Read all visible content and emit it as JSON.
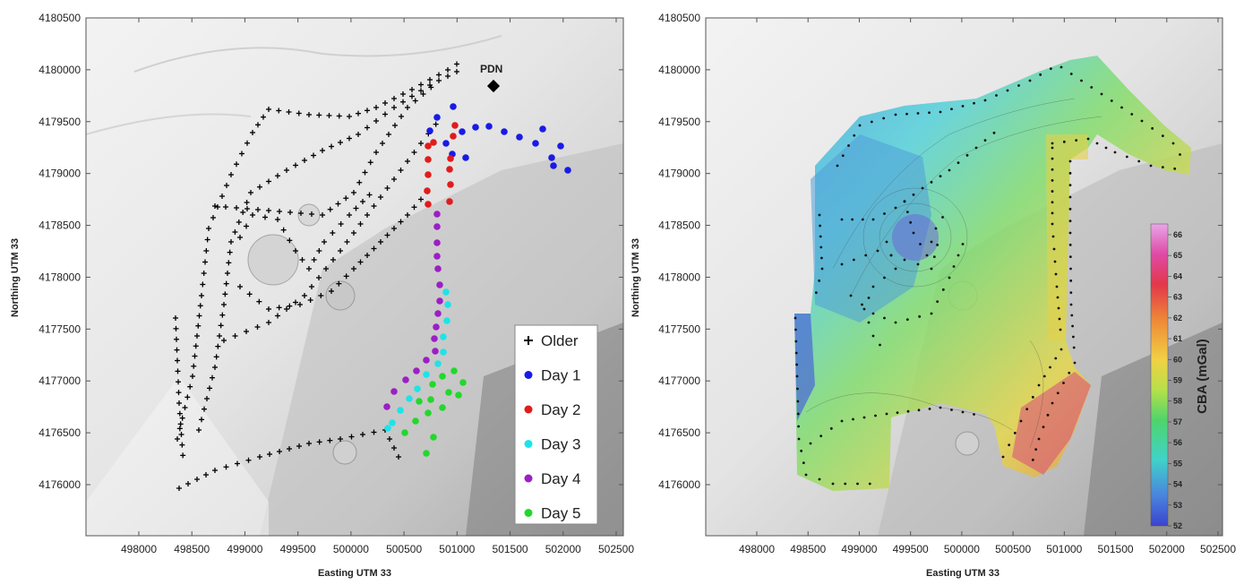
{
  "left_map": {
    "x_axis_label": "Easting UTM 33",
    "y_axis_label": "Northing UTM 33",
    "x_ticks": [
      "498000",
      "498500",
      "499000",
      "499500",
      "500000",
      "500500",
      "501000",
      "501500",
      "502000",
      "502500"
    ],
    "y_ticks": [
      "4180500",
      "4180000",
      "4179500",
      "4179000",
      "4178500",
      "4178000",
      "4177500",
      "4177000",
      "4176500",
      "4176000"
    ],
    "station_label": "PDN",
    "legend": [
      {
        "label": "Older",
        "symbol": "plus-marker",
        "color": "#000000"
      },
      {
        "label": "Day 1",
        "symbol": "dot-marker",
        "color": "#1a1ae6"
      },
      {
        "label": "Day 2",
        "symbol": "dot-marker",
        "color": "#e01c1c"
      },
      {
        "label": "Day 3",
        "symbol": "dot-marker",
        "color": "#1ee3e8"
      },
      {
        "label": "Day 4",
        "symbol": "dot-marker",
        "color": "#9b1fc4"
      },
      {
        "label": "Day 5",
        "symbol": "dot-marker",
        "color": "#22d82c"
      }
    ]
  },
  "right_map": {
    "x_axis_label": "Easting UTM 33",
    "y_axis_label": "Northing UTM 33",
    "x_ticks": [
      "498000",
      "498500",
      "499000",
      "499500",
      "500000",
      "500500",
      "501000",
      "501500",
      "502000",
      "502500"
    ],
    "y_ticks": [
      "4180500",
      "4180000",
      "4179500",
      "4179000",
      "4178500",
      "4178000",
      "4177500",
      "4177000",
      "4176500",
      "4176000"
    ],
    "colorbar_label": "CBA (mGal)",
    "colorbar_ticks": [
      "66",
      "65",
      "64",
      "63",
      "62",
      "61",
      "60",
      "59",
      "58",
      "57",
      "56",
      "55",
      "54",
      "53",
      "52"
    ],
    "colorbar_colors": [
      "#e8a6e8",
      "#df58c8",
      "#e0336f",
      "#e34a35",
      "#eb7b35",
      "#f0a33a",
      "#f2c440",
      "#e8e04a",
      "#b6e04a",
      "#6bd955",
      "#3fd07a",
      "#3fd2c0",
      "#4ab7e0",
      "#4b86de",
      "#3c45cf"
    ]
  }
}
